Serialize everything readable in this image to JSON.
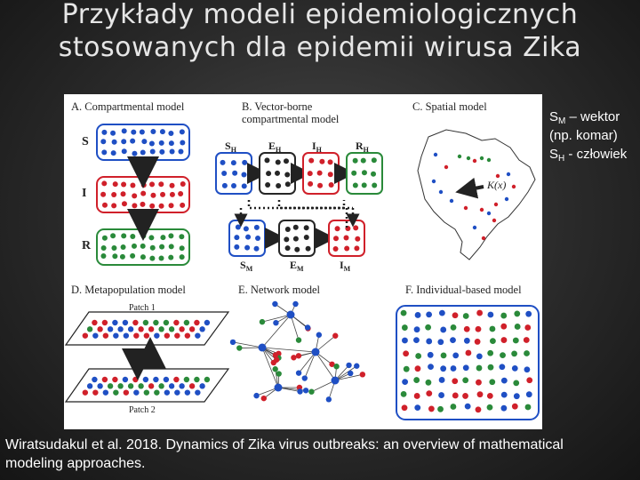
{
  "slide": {
    "title": "Przykłady modeli epidemiologicznych stosowanych dla epidemii wirusa Zika",
    "note": {
      "line1_letter": "S",
      "line1_sub": "M",
      "line1_text": " – wektor",
      "line2_text": "(np. komar)",
      "line3_letter": "S",
      "line3_sub": "H",
      "line3_text": " - człowiek"
    },
    "citation": "Wiratsudakul et al. 2018. Dynamics of Zika virus outbreaks: an overview of mathematical modeling approaches."
  },
  "figure": {
    "panel_a": {
      "title": "A. Compartmental model",
      "labels": [
        "S",
        "I",
        "R"
      ]
    },
    "panel_b": {
      "title_line1": "B. Vector-borne",
      "title_line2": "compartmental model",
      "human": [
        "S",
        "E",
        "I",
        "R"
      ],
      "human_sub": "H",
      "vector": [
        "S",
        "E",
        "I"
      ],
      "vector_sub": "M"
    },
    "panel_c": {
      "title": "C. Spatial model",
      "kernel": "K(x)"
    },
    "panel_d": {
      "title": "D. Metapopulation model",
      "patch1": "Patch 1",
      "patch2": "Patch 2"
    },
    "panel_e": {
      "title": "E. Network model"
    },
    "panel_f": {
      "title": "F. Individual-based model"
    },
    "colors": {
      "susceptible": "#1f4fc4",
      "exposed": "#262626",
      "infected": "#d0202a",
      "recovered": "#2a8a3a"
    }
  }
}
